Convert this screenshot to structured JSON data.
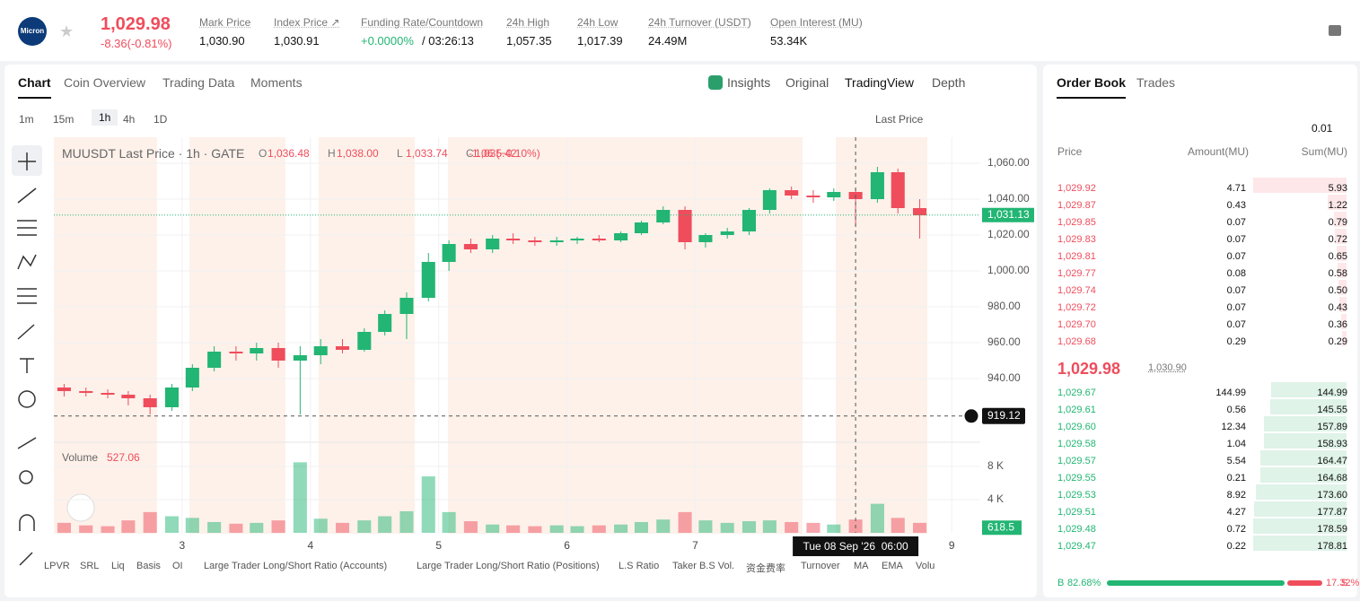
{
  "header": {
    "logo": "Micron",
    "price": "1,029.98",
    "change": "-8.36(-0.81%)",
    "stats": [
      {
        "label": "Mark Price",
        "value": "1,030.90"
      },
      {
        "label": "Index Price ↗",
        "value": "1,030.91"
      },
      {
        "label": "Funding Rate/Countdown",
        "value": "+0.0000%",
        "extra": "/ 03:26:13"
      },
      {
        "label": "24h High",
        "value": "1,057.35"
      },
      {
        "label": "24h Low",
        "value": "1,017.39"
      },
      {
        "label": "24h Turnover (USDT)",
        "value": "24.49M"
      },
      {
        "label": "Open Interest (MU)",
        "value": "53.34K"
      }
    ]
  },
  "tabs": [
    "Chart",
    "Coin Overview",
    "Trading Data",
    "Moments"
  ],
  "view_tabs": [
    "Insights",
    "Original",
    "TradingView",
    "Depth"
  ],
  "intervals": [
    "1m",
    "15m",
    "1h",
    "4h",
    "1D"
  ],
  "price_source": "Last Price",
  "legend": {
    "symbol": "MUUSDT Last Price · 1h · GATE",
    "ohlc": [
      {
        "key": "O",
        "value": "1,036.48"
      },
      {
        "key": "H",
        "value": "1,038.00"
      },
      {
        "key": "L",
        "value": "1,033.74"
      },
      {
        "key": "C",
        "value": "1,035.42"
      }
    ],
    "change": "-1.06 (−0.10%)",
    "volume_label": "Volume",
    "volume_value": "527.06"
  },
  "chart_data": {
    "type": "candlestick",
    "up_color": "#22b573",
    "down_color": "#ef4d5c",
    "x": [
      2.08,
      2.25,
      2.42,
      2.58,
      2.75,
      2.92,
      3.08,
      3.25,
      3.42,
      3.58,
      3.75,
      3.92,
      4.08,
      4.25,
      4.42,
      4.58,
      4.75,
      4.92,
      5.08,
      5.25,
      5.42,
      5.58,
      5.75,
      5.92,
      6.08,
      6.25,
      6.42,
      6.58,
      6.75,
      6.92,
      7.08,
      7.25,
      7.42,
      7.58,
      7.75,
      7.92,
      8.08,
      8.25,
      8.42,
      8.58,
      8.75
    ],
    "candles": [
      [
        935,
        937,
        930,
        933
      ],
      [
        933,
        935,
        930,
        932
      ],
      [
        932,
        934,
        929,
        931
      ],
      [
        931,
        933,
        925,
        929
      ],
      [
        929,
        931,
        920,
        924
      ],
      [
        924,
        937,
        922,
        935
      ],
      [
        935,
        948,
        933,
        946
      ],
      [
        946,
        958,
        944,
        955
      ],
      [
        955,
        958,
        950,
        954
      ],
      [
        954,
        960,
        950,
        957
      ],
      [
        957,
        960,
        946,
        950
      ],
      [
        950,
        958,
        920,
        953
      ],
      [
        953,
        962,
        948,
        958
      ],
      [
        958,
        962,
        954,
        956
      ],
      [
        956,
        968,
        955,
        966
      ],
      [
        966,
        978,
        964,
        976
      ],
      [
        976,
        988,
        962,
        985
      ],
      [
        985,
        1010,
        983,
        1005
      ],
      [
        1005,
        1017,
        1000,
        1015
      ],
      [
        1015,
        1018,
        1010,
        1012
      ],
      [
        1012,
        1020,
        1010,
        1018
      ],
      [
        1018,
        1021,
        1015,
        1017
      ],
      [
        1017,
        1019,
        1014,
        1016
      ],
      [
        1016,
        1019,
        1014,
        1017
      ],
      [
        1017,
        1019,
        1015,
        1018
      ],
      [
        1018,
        1020,
        1016,
        1017
      ],
      [
        1017,
        1022,
        1016,
        1021
      ],
      [
        1021,
        1028,
        1020,
        1027
      ],
      [
        1027,
        1036,
        1026,
        1034
      ],
      [
        1034,
        1036,
        1012,
        1016
      ],
      [
        1016,
        1021,
        1013,
        1020
      ],
      [
        1020,
        1024,
        1018,
        1022
      ],
      [
        1022,
        1035,
        1020,
        1034
      ],
      [
        1034,
        1046,
        1032,
        1045
      ],
      [
        1045,
        1047,
        1040,
        1042
      ],
      [
        1042,
        1045,
        1038,
        1041
      ],
      [
        1041,
        1046,
        1039,
        1044
      ],
      [
        1044,
        1046,
        1025,
        1040
      ],
      [
        1040,
        1058,
        1038,
        1055
      ],
      [
        1055,
        1057,
        1032,
        1035
      ],
      [
        1035,
        1040,
        1018,
        1031
      ]
    ],
    "volume": [
      1200,
      900,
      800,
      1500,
      2500,
      2000,
      1800,
      1300,
      1100,
      1200,
      1500,
      8500,
      1700,
      1200,
      1500,
      2000,
      2600,
      6800,
      2500,
      1400,
      1000,
      900,
      800,
      900,
      800,
      900,
      1000,
      1300,
      1600,
      2500,
      1500,
      1200,
      1400,
      1500,
      1300,
      1200,
      1000,
      1600,
      3500,
      1800,
      1200
    ],
    "xlim": [
      2,
      9.222
    ],
    "xticks": [
      3,
      4,
      5,
      6,
      7,
      9
    ],
    "ylim": [
      905,
      1074.5
    ],
    "yticks": [
      {
        "value": 940,
        "label": "940.00"
      },
      {
        "value": 960,
        "label": "960.00"
      },
      {
        "value": 980,
        "label": "980.00"
      },
      {
        "value": 1000,
        "label": "1,000.00"
      },
      {
        "value": 1020,
        "label": "1,020.00"
      },
      {
        "value": 1040,
        "label": "1,040.00"
      },
      {
        "value": 1060,
        "label": "1,060.00"
      }
    ],
    "volume_ylim": [
      0,
      10700
    ],
    "volume_yticks": [
      {
        "value": 4000,
        "label": "4 K"
      },
      {
        "value": 8000,
        "label": "8 K"
      }
    ],
    "last_price": {
      "value": 1031.13,
      "label": "1,031.13"
    },
    "crosshair": {
      "x": 8.25,
      "price": {
        "value": 919.12,
        "label": "919.12"
      },
      "time_label": "Tue 08 Sep '26  06:00"
    },
    "volume_tag": 618.5
  },
  "indicators": [
    "LPVR",
    "SRL",
    "Liq",
    "Basis",
    "OI",
    "Large Trader Long/Short Ratio (Accounts)",
    "Large Trader Long/Short Ratio (Positions)",
    "L.S Ratio",
    "Taker B.S Vol.",
    "资金费率",
    "Turnover",
    "MA",
    "EMA",
    "Volu"
  ],
  "order_book": {
    "tabs": [
      "Order Book",
      "Trades"
    ],
    "tick": "0.01",
    "headers": [
      "Price",
      "Amount(MU)",
      "Sum(MU)"
    ],
    "asks": [
      [
        "1,029.92",
        4.71,
        5.93
      ],
      [
        "1,029.87",
        0.43,
        1.22
      ],
      [
        "1,029.85",
        0.07,
        0.79
      ],
      [
        "1,029.83",
        0.07,
        0.72
      ],
      [
        "1,029.81",
        0.07,
        0.65
      ],
      [
        "1,029.77",
        0.08,
        0.58
      ],
      [
        "1,029.74",
        0.07,
        0.5
      ],
      [
        "1,029.72",
        0.07,
        0.43
      ],
      [
        "1,029.70",
        0.07,
        0.36
      ],
      [
        "1,029.68",
        0.29,
        0.29
      ]
    ],
    "ask_labels": [
      [
        "4.71",
        "5.93"
      ],
      [
        "0.43",
        "1.22"
      ],
      [
        "0.07",
        "0.79"
      ],
      [
        "0.07",
        "0.72"
      ],
      [
        "0.07",
        "0.65"
      ],
      [
        "0.08",
        "0.58"
      ],
      [
        "0.07",
        "0.50"
      ],
      [
        "0.07",
        "0.43"
      ],
      [
        "0.07",
        "0.36"
      ],
      [
        "0.29",
        "0.29"
      ]
    ],
    "mid": "1,029.98",
    "mark": "1,030.90",
    "bids": [
      [
        "1,029.67",
        144.99,
        144.99
      ],
      [
        "1,029.61",
        0.56,
        145.55
      ],
      [
        "1,029.60",
        12.34,
        157.89
      ],
      [
        "1,029.58",
        1.04,
        158.93
      ],
      [
        "1,029.57",
        5.54,
        164.47
      ],
      [
        "1,029.55",
        0.21,
        164.68
      ],
      [
        "1,029.53",
        8.92,
        173.6
      ],
      [
        "1,029.51",
        4.27,
        177.87
      ],
      [
        "1,029.48",
        0.72,
        178.59
      ],
      [
        "1,029.47",
        0.22,
        178.81
      ]
    ],
    "bid_labels": [
      [
        "144.99",
        "144.99"
      ],
      [
        "0.56",
        "145.55"
      ],
      [
        "12.34",
        "157.89"
      ],
      [
        "1.04",
        "158.93"
      ],
      [
        "5.54",
        "164.47"
      ],
      [
        "0.21",
        "164.68"
      ],
      [
        "8.92",
        "173.60"
      ],
      [
        "4.27",
        "177.87"
      ],
      [
        "0.72",
        "178.59"
      ],
      [
        "0.22",
        "178.81"
      ]
    ],
    "buy": {
      "key": "B",
      "pct": {
        "value": 82.68,
        "label": "82.68%"
      }
    },
    "sell": {
      "key": "S",
      "pct": {
        "value": 17.32,
        "label": "17.32%"
      }
    }
  }
}
